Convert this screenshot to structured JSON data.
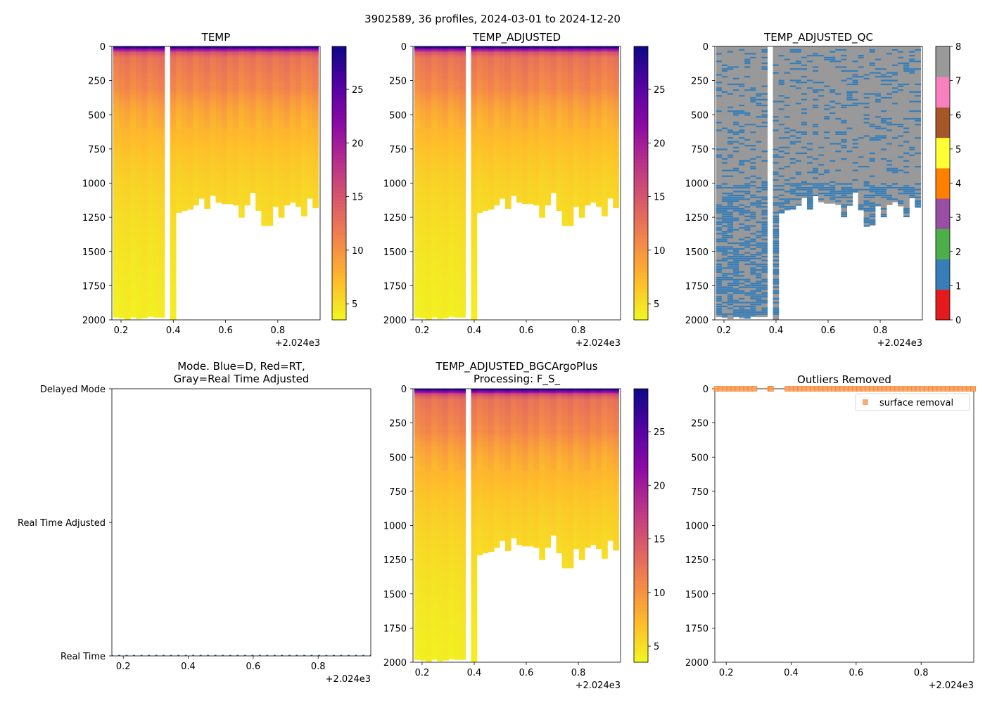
{
  "figure_title": "3902589, 36 profiles, 2024-03-01 to 2024-12-20",
  "axis_offset_label": "+2.024e3",
  "colors": {
    "qc_palette": [
      "#e41a1c",
      "#377eb8",
      "#4daf4a",
      "#984ea3",
      "#ff7f00",
      "#ffff33",
      "#a65628",
      "#f781bf",
      "#999999"
    ],
    "outlier_marker": "#f7a268",
    "outlier_marker_edge": "#ff7f0e",
    "mode_dots": "#1f77b4"
  },
  "chart_data": [
    {
      "id": "temp",
      "type": "heatmap",
      "title": "TEMP",
      "x_range": [
        0.165,
        0.962
      ],
      "x_ticks": [
        0.2,
        0.4,
        0.6,
        0.8
      ],
      "x_tick_labels": [
        "0.2",
        "0.4",
        "0.6",
        "0.8"
      ],
      "y_range": [
        2000,
        0
      ],
      "y_ticks": [
        0,
        250,
        500,
        750,
        1000,
        1250,
        1500,
        1750,
        2000
      ],
      "y_tick_labels": [
        "0",
        "250",
        "500",
        "750",
        "1000",
        "1250",
        "1500",
        "1750",
        "2000"
      ],
      "colormap": "plasma_r",
      "colorbar_range": [
        3.5,
        29
      ],
      "colorbar_ticks": [
        5,
        10,
        15,
        20,
        25
      ],
      "colorbar_tick_labels": [
        "5",
        "10",
        "15",
        "20",
        "25"
      ],
      "profile_x": [
        0.17,
        0.1918,
        0.2136,
        0.2354,
        0.2572,
        0.279,
        0.3008,
        0.3226,
        0.3444,
        0.3662,
        0.388,
        0.4098,
        0.4316,
        0.4534,
        0.4752,
        0.497,
        0.5188,
        0.5406,
        0.5624,
        0.5842,
        0.606,
        0.6278,
        0.6496,
        0.6714,
        0.6932,
        0.715,
        0.7368,
        0.7586,
        0.7804,
        0.8022,
        0.824,
        0.8458,
        0.8676,
        0.8894,
        0.9112,
        0.933
      ],
      "profile_max_depth": [
        1980,
        1985,
        1995,
        1980,
        1990,
        1985,
        1975,
        1980,
        1980,
        null,
        2000,
        1215,
        1200,
        1190,
        1160,
        1110,
        1185,
        1090,
        1140,
        1150,
        1150,
        1160,
        1250,
        1160,
        1070,
        1200,
        1310,
        1310,
        1170,
        1250,
        1160,
        1140,
        1170,
        1240,
        1110,
        1180
      ]
    },
    {
      "id": "temp_adjusted",
      "type": "heatmap",
      "title": "TEMP_ADJUSTED",
      "x_range": [
        0.165,
        0.962
      ],
      "x_ticks": [
        0.2,
        0.4,
        0.6,
        0.8
      ],
      "x_tick_labels": [
        "0.2",
        "0.4",
        "0.6",
        "0.8"
      ],
      "y_range": [
        2000,
        0
      ],
      "y_ticks": [
        0,
        250,
        500,
        750,
        1000,
        1250,
        1500,
        1750,
        2000
      ],
      "y_tick_labels": [
        "0",
        "250",
        "500",
        "750",
        "1000",
        "1250",
        "1500",
        "1750",
        "2000"
      ],
      "colormap": "plasma_r",
      "colorbar_range": [
        3.5,
        29
      ],
      "colorbar_ticks": [
        5,
        10,
        15,
        20,
        25
      ],
      "colorbar_tick_labels": [
        "5",
        "10",
        "15",
        "20",
        "25"
      ]
    },
    {
      "id": "temp_adjusted_qc",
      "type": "heatmap",
      "title": "TEMP_ADJUSTED_QC",
      "x_range": [
        0.165,
        0.962
      ],
      "x_ticks": [
        0.2,
        0.4,
        0.6,
        0.8
      ],
      "x_tick_labels": [
        "0.2",
        "0.4",
        "0.6",
        "0.8"
      ],
      "y_range": [
        2000,
        0
      ],
      "y_ticks": [
        0,
        250,
        500,
        750,
        1000,
        1250,
        1500,
        1750,
        2000
      ],
      "y_tick_labels": [
        "0",
        "250",
        "500",
        "750",
        "1000",
        "1250",
        "1500",
        "1750",
        "2000"
      ],
      "colormap": "qc_discrete",
      "colorbar_range": [
        0,
        8
      ],
      "colorbar_ticks": [
        0,
        1,
        2,
        3,
        4,
        5,
        6,
        7,
        8
      ],
      "colorbar_tick_labels": [
        "0",
        "1",
        "2",
        "3",
        "4",
        "5",
        "6",
        "7",
        "8"
      ],
      "values_present": [
        1,
        8
      ]
    },
    {
      "id": "mode",
      "type": "scatter",
      "title_lines": [
        "Mode. Blue=D, Red=RT,",
        "Gray=Real Time Adjusted"
      ],
      "x_range": [
        0.165,
        0.962
      ],
      "x_ticks": [
        0.2,
        0.4,
        0.6,
        0.8
      ],
      "x_tick_labels": [
        "0.2",
        "0.4",
        "0.6",
        "0.8"
      ],
      "y_categories": [
        "Real Time",
        "Real Time Adjusted",
        "Delayed Mode"
      ],
      "points_y_category": "Real Time",
      "point_count": 36
    },
    {
      "id": "temp_adjusted_bgc",
      "type": "heatmap",
      "title_lines": [
        "TEMP_ADJUSTED_BGCArgoPlus",
        "Processing: F_S_"
      ],
      "x_range": [
        0.165,
        0.962
      ],
      "x_ticks": [
        0.2,
        0.4,
        0.6,
        0.8
      ],
      "x_tick_labels": [
        "0.2",
        "0.4",
        "0.6",
        "0.8"
      ],
      "y_range": [
        2000,
        0
      ],
      "y_ticks": [
        0,
        250,
        500,
        750,
        1000,
        1250,
        1500,
        1750,
        2000
      ],
      "y_tick_labels": [
        "0",
        "250",
        "500",
        "750",
        "1000",
        "1250",
        "1500",
        "1750",
        "2000"
      ],
      "colormap": "plasma_r",
      "colorbar_range": [
        3.5,
        29
      ],
      "colorbar_ticks": [
        5,
        10,
        15,
        20,
        25
      ],
      "colorbar_tick_labels": [
        "5",
        "10",
        "15",
        "20",
        "25"
      ]
    },
    {
      "id": "outliers",
      "type": "scatter",
      "title": "Outliers Removed",
      "x_range": [
        0.165,
        0.962
      ],
      "x_ticks": [
        0.2,
        0.4,
        0.6,
        0.8
      ],
      "x_tick_labels": [
        "0.2",
        "0.4",
        "0.6",
        "0.8"
      ],
      "y_range": [
        2000,
        0
      ],
      "y_ticks": [
        0,
        250,
        500,
        750,
        1000,
        1250,
        1500,
        1750,
        2000
      ],
      "y_tick_labels": [
        "0",
        "250",
        "500",
        "750",
        "1000",
        "1250",
        "1500",
        "1750",
        "2000"
      ],
      "legend": [
        "surface removal"
      ],
      "legend_loc": "upper right",
      "points_x": [
        0.17,
        0.183,
        0.196,
        0.209,
        0.222,
        0.235,
        0.248,
        0.261,
        0.274,
        0.287,
        0.335,
        0.338,
        0.388,
        0.401,
        0.414,
        0.427,
        0.44,
        0.453,
        0.466,
        0.479,
        0.492,
        0.505,
        0.518,
        0.531,
        0.544,
        0.557,
        0.57,
        0.583,
        0.596,
        0.609,
        0.622,
        0.635,
        0.648,
        0.661,
        0.674,
        0.687,
        0.7,
        0.713,
        0.726,
        0.739,
        0.752,
        0.765,
        0.778,
        0.791,
        0.804,
        0.817,
        0.83,
        0.843,
        0.856,
        0.869,
        0.882,
        0.895,
        0.908,
        0.921,
        0.934,
        0.947,
        0.96
      ],
      "points_y": 0
    }
  ]
}
